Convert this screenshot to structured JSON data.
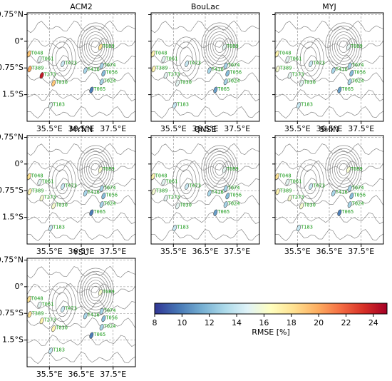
{
  "chart_data": {
    "type": "station-map",
    "xlim": [
      34.8,
      38.2
    ],
    "ylim": [
      -2.25,
      0.8
    ],
    "xticks": [
      {
        "value": 35.5,
        "label": "35.5°E"
      },
      {
        "value": 36.5,
        "label": "36.5°E"
      },
      {
        "value": 37.5,
        "label": "37.5°E"
      }
    ],
    "yticks": [
      {
        "value": 0.75,
        "label": "0.75°N"
      },
      {
        "value": 0,
        "label": "0°"
      },
      {
        "value": -0.75,
        "label": "0.75°S"
      },
      {
        "value": -1.5,
        "label": "1.5°S"
      }
    ],
    "stations": [
      {
        "name": "T048",
        "lon": 34.86,
        "lat": -0.35
      },
      {
        "name": "T061",
        "lon": 35.19,
        "lat": -0.51
      },
      {
        "name": "T389",
        "lon": 34.88,
        "lat": -0.78
      },
      {
        "name": "T273",
        "lon": 35.26,
        "lat": -0.96
      },
      {
        "name": "T473",
        "lon": 35.92,
        "lat": -0.63
      },
      {
        "name": "T030",
        "lon": 35.63,
        "lat": -1.18
      },
      {
        "name": "T183",
        "lon": 35.54,
        "lat": -1.8
      },
      {
        "name": "T416",
        "lon": 36.63,
        "lat": -0.82
      },
      {
        "name": "T074",
        "lon": 37.14,
        "lat": -0.69
      },
      {
        "name": "T056",
        "lon": 37.2,
        "lat": -0.9
      },
      {
        "name": "T024",
        "lon": 37.14,
        "lat": -1.14
      },
      {
        "name": "T065",
        "lon": 36.82,
        "lat": -1.37
      },
      {
        "name": "T089",
        "lon": 37.1,
        "lat": -0.16
      }
    ],
    "panels": [
      {
        "title": "ACM2",
        "values": [
          19,
          15,
          20,
          24,
          14,
          19,
          15,
          13,
          13,
          12,
          13,
          10,
          18
        ]
      },
      {
        "title": "BouLac",
        "values": [
          17,
          15,
          17,
          15,
          14,
          15,
          14,
          13,
          13,
          12,
          13,
          11,
          15
        ]
      },
      {
        "title": "MYJ",
        "values": [
          17,
          15,
          16,
          15,
          14,
          15,
          14,
          13,
          13,
          12,
          13,
          11,
          15
        ]
      },
      {
        "title": "MYNN",
        "values": [
          18,
          15,
          17,
          16,
          14,
          16,
          14,
          13,
          13,
          12,
          13,
          10,
          16
        ]
      },
      {
        "title": "QNSE",
        "values": [
          17,
          15,
          16,
          15,
          14,
          15,
          14,
          13,
          13,
          12,
          13,
          11,
          15
        ]
      },
      {
        "title": "SHIN",
        "values": [
          18,
          15,
          17,
          16,
          14,
          16,
          14,
          13,
          13,
          12,
          13,
          10,
          16
        ]
      },
      {
        "title": "YSU",
        "values": [
          18,
          15,
          18,
          17,
          14,
          17,
          14,
          13,
          13,
          12,
          13,
          10,
          16
        ]
      }
    ],
    "colorbar": {
      "label": "RMSE [%]",
      "lim": [
        8,
        25
      ],
      "ticks": [
        8,
        10,
        12,
        14,
        16,
        18,
        20,
        22,
        24
      ],
      "colors": [
        "#313695",
        "#4575b4",
        "#74add1",
        "#abd9e9",
        "#e0f3f8",
        "#ffffbf",
        "#fee090",
        "#fdae61",
        "#f46d43",
        "#d73027",
        "#a50026"
      ]
    }
  }
}
